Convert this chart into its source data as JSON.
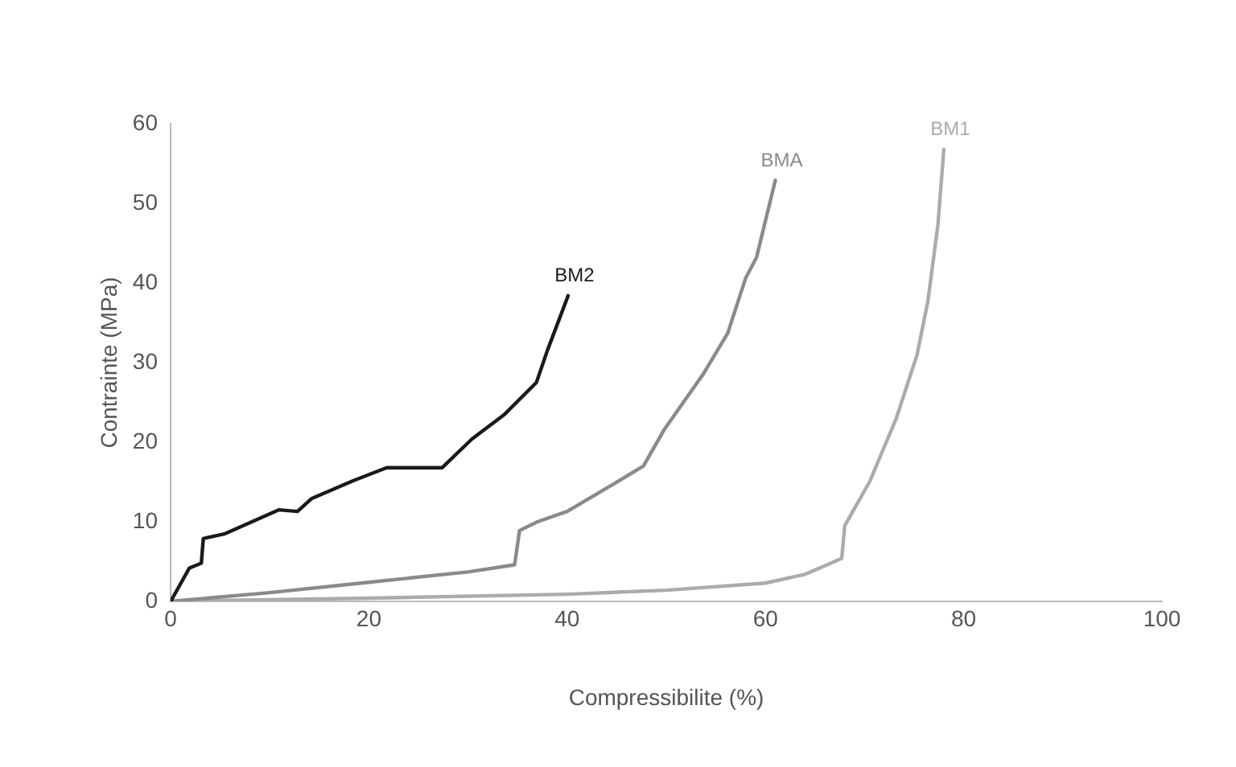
{
  "chart_data": {
    "type": "line",
    "xlabel": "Compressibilite (%)",
    "ylabel": "Contrainte (MPa)",
    "xlim": [
      0,
      100
    ],
    "xticks": [
      0,
      20,
      40,
      60,
      80,
      100
    ],
    "ylim": [
      0,
      60
    ],
    "yticks": [
      0,
      10,
      20,
      30,
      40,
      50,
      60
    ],
    "grid": false,
    "legend": false,
    "marker": "none",
    "line_style": "solid",
    "series": [
      {
        "name": "BM2",
        "color": "#1a1a1a",
        "x": [
          0,
          0.1,
          1.9,
          3.1,
          3.3,
          5.5,
          10.9,
          12.8,
          14.2,
          18.5,
          21.8,
          27.4,
          30.4,
          33.6,
          36.9,
          38,
          40.1
        ],
        "values": [
          0,
          0.2,
          4.2,
          4.8,
          7.9,
          8.5,
          11.5,
          11.3,
          12.9,
          15.2,
          16.8,
          16.8,
          20.4,
          23.4,
          27.5,
          31.5,
          38.4
        ]
      },
      {
        "name": "BMA",
        "color": "#8a8a8a",
        "x": [
          0,
          10,
          20,
          30,
          34.7,
          35.2,
          37,
          40,
          44.5,
          47.7,
          49.8,
          53.7,
          56.2,
          58,
          59.1,
          61
        ],
        "values": [
          0,
          1.1,
          2.4,
          3.7,
          4.6,
          8.9,
          10,
          11.3,
          14.6,
          17,
          21.6,
          28.5,
          33.7,
          40.6,
          43.2,
          52.9
        ]
      },
      {
        "name": "BM1",
        "color": "#ababab",
        "x": [
          0,
          20,
          40,
          50,
          60,
          64,
          67.7,
          68,
          70.5,
          73.2,
          75.3,
          76.4,
          77.4,
          78
        ],
        "values": [
          0,
          0.4,
          0.9,
          1.4,
          2.3,
          3.4,
          5.4,
          9.5,
          15,
          23,
          31,
          37.8,
          47.3,
          56.8
        ]
      }
    ]
  }
}
